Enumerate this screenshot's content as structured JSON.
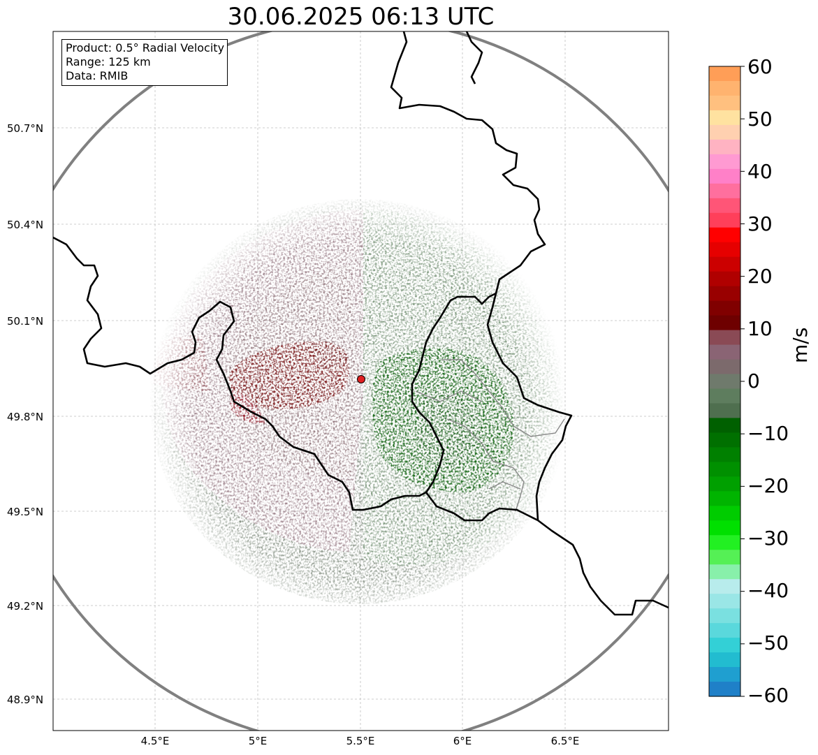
{
  "title": "30.06.2025 06:13 UTC",
  "info_box": {
    "product": "Product: 0.5° Radial Velocity",
    "range": "Range: 125 km",
    "source": "Data: RMIB"
  },
  "lat_ticks": [
    "50.7°N",
    "50.4°N",
    "50.1°N",
    "49.8°N",
    "49.5°N",
    "49.2°N",
    "48.9°N"
  ],
  "lon_ticks": [
    "4.5°E",
    "5°E",
    "5.5°E",
    "6°E",
    "6.5°E"
  ],
  "colorbar": {
    "unit": "m/s",
    "ticks": [
      "60",
      "50",
      "40",
      "30",
      "20",
      "10",
      "0",
      "−10",
      "−20",
      "−30",
      "−40",
      "−50",
      "−60"
    ],
    "range": [
      -60,
      60
    ],
    "colors_top_to_bottom": [
      "#ff9e57",
      "#ffb36f",
      "#ffc07f",
      "#ffe2a0",
      "#ffd0b0",
      "#ffb3c2",
      "#ff9ad2",
      "#ff80c8",
      "#ff6f9e",
      "#ff5577",
      "#ff3f5a",
      "#ff0000",
      "#e60000",
      "#cc0000",
      "#b00000",
      "#990000",
      "#800000",
      "#6e0000",
      "#8a4a55",
      "#8a6474",
      "#7c6a6c",
      "#6f7a6c",
      "#5e7d5e",
      "#4f6f4f",
      "#006000",
      "#007000",
      "#008000",
      "#009000",
      "#00a000",
      "#00b400",
      "#00cc00",
      "#00e000",
      "#22f022",
      "#55f055",
      "#88f0aa",
      "#b8ecec",
      "#9ae6e6",
      "#7ae0e0",
      "#5ad8dc",
      "#33d0d6",
      "#22bcd0",
      "#1f9fd0",
      "#1f80c8"
    ]
  },
  "map": {
    "radar_site": "red-dot",
    "range_ring_color": "#808080",
    "border_color": "#000000",
    "colors": {
      "approaching_strong": "#006600",
      "approaching_weak": "#5f7f5f",
      "receding_weak": "#8a6a75",
      "receding_strong": "#7a0000"
    }
  }
}
